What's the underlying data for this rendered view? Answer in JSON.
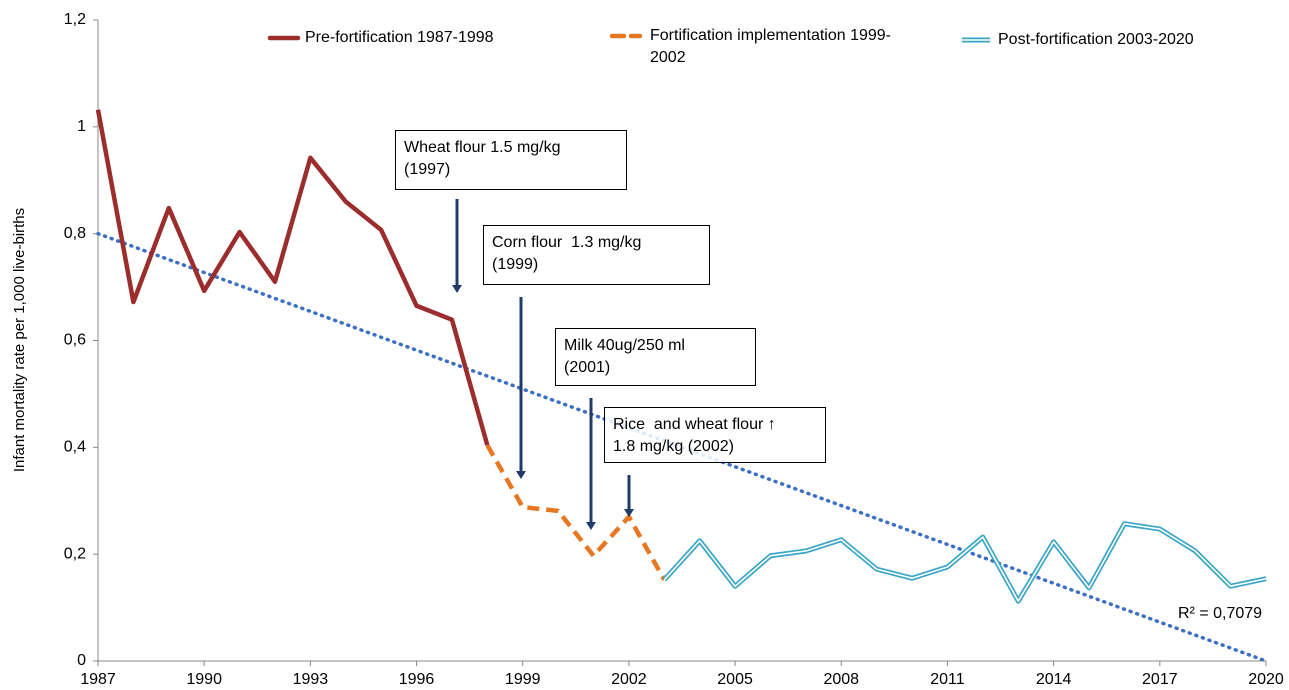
{
  "chart_data": {
    "type": "line",
    "ylabel": "Infant mortality rate per 1,000 live-births",
    "xlim": [
      1987,
      2020
    ],
    "xticks": [
      1987,
      1990,
      1993,
      1996,
      1999,
      2002,
      2005,
      2008,
      2011,
      2014,
      2017,
      2020
    ],
    "ylim": [
      0,
      1.2
    ],
    "yticks": [
      0,
      {
        "value": 0.2,
        "label": "0,2"
      },
      {
        "value": 0.4,
        "label": "0,4"
      },
      {
        "value": 0.6,
        "label": "0,6"
      },
      {
        "value": 0.8,
        "label": "0,8"
      },
      1,
      {
        "value": 1.2,
        "label": "1,2"
      }
    ],
    "series": [
      {
        "name": "Pre-fortification 1987-1998",
        "color": "#9b2d2d",
        "style": "solid",
        "x": [
          1987,
          1988,
          1989,
          1990,
          1991,
          1992,
          1993,
          1994,
          1995,
          1996,
          1997,
          1998
        ],
        "values": [
          1.032,
          0.672,
          0.848,
          0.693,
          0.803,
          0.71,
          0.942,
          0.86,
          0.807,
          0.665,
          0.639,
          0.404
        ]
      },
      {
        "name": "Fortification implementation 1999-2002",
        "color": "#e87722",
        "style": "dashed",
        "x": [
          1998,
          1999,
          2000,
          2001,
          2002,
          2003
        ],
        "values": [
          0.404,
          0.288,
          0.281,
          0.197,
          0.27,
          0.152
        ]
      },
      {
        "name": "Post-fortification 2003-2020",
        "color": "#3aa6c4",
        "style": "double",
        "x": [
          2003,
          2004,
          2005,
          2006,
          2007,
          2008,
          2009,
          2010,
          2011,
          2012,
          2013,
          2014,
          2015,
          2016,
          2017,
          2018,
          2019,
          2020
        ],
        "values": [
          0.152,
          0.225,
          0.14,
          0.197,
          0.206,
          0.227,
          0.172,
          0.155,
          0.176,
          0.232,
          0.112,
          0.223,
          0.137,
          0.257,
          0.247,
          0.206,
          0.14,
          0.154
        ]
      }
    ],
    "trend": {
      "color": "#3a6fc4",
      "x": [
        1987,
        2020
      ],
      "values": [
        0.8,
        0.0
      ],
      "label": "R² = 0,7079"
    },
    "annotations": [
      [
        "Wheat flour 1.5 mg/kg",
        "(1997)"
      ],
      [
        "Corn flour  1.3 mg/kg",
        "(1999)"
      ],
      [
        "Milk 40ug/250 ml",
        "(2001)"
      ],
      [
        "Rice  and wheat flour ↑",
        "1.8 mg/kg (2002)"
      ]
    ]
  }
}
